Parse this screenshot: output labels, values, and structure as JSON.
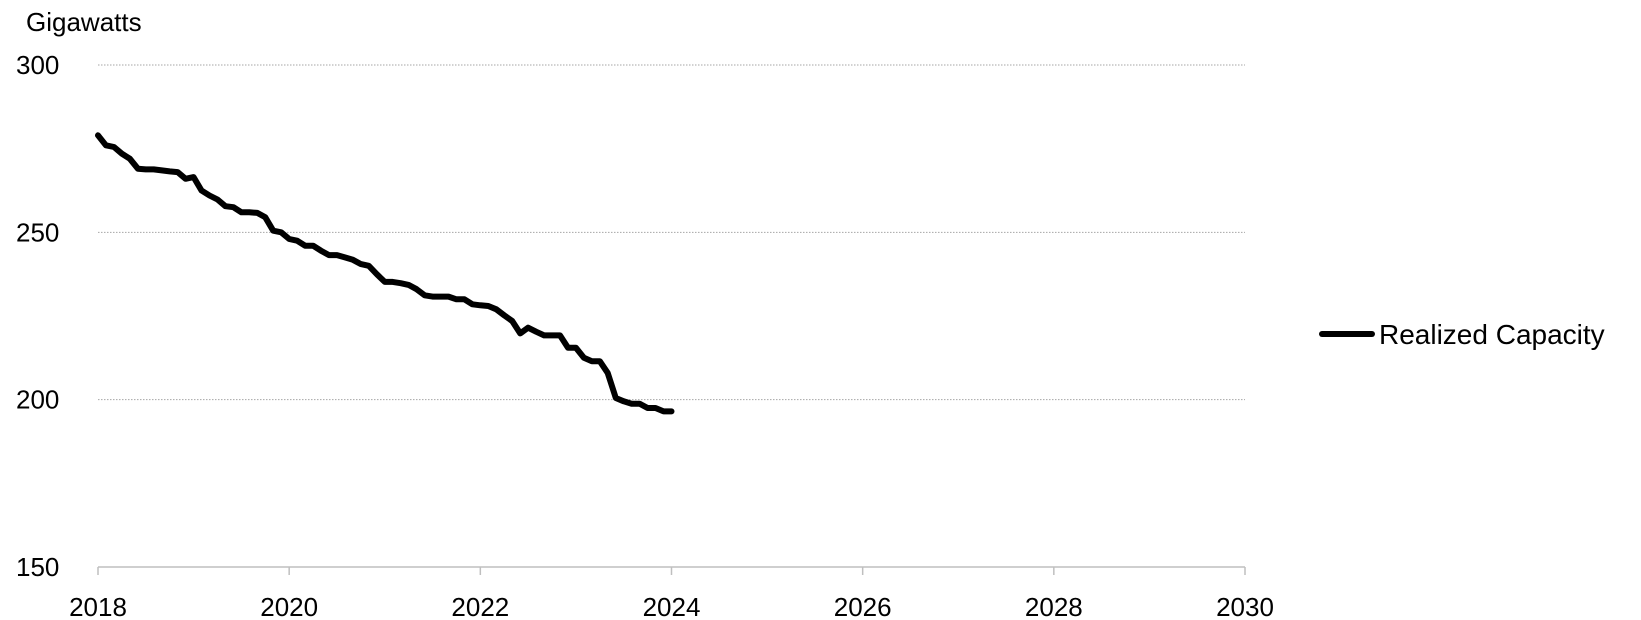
{
  "chart_data": {
    "type": "line",
    "title": "",
    "ylabel": "Gigawatts",
    "xlabel": "",
    "xlim": [
      2018,
      2030
    ],
    "ylim": [
      150,
      300
    ],
    "xticks": [
      2018,
      2020,
      2022,
      2024,
      2026,
      2028,
      2030
    ],
    "yticks": [
      150,
      200,
      250,
      300
    ],
    "grid": "horizontal dotted",
    "legend": "right",
    "series": [
      {
        "name": "Realized Capacity",
        "color": "#000000",
        "x": [
          2018.0,
          2018.083,
          2018.167,
          2018.25,
          2018.333,
          2018.417,
          2018.5,
          2018.583,
          2018.667,
          2018.75,
          2018.833,
          2018.917,
          2019.0,
          2019.083,
          2019.167,
          2019.25,
          2019.333,
          2019.417,
          2019.5,
          2019.583,
          2019.667,
          2019.75,
          2019.833,
          2019.917,
          2020.0,
          2020.083,
          2020.167,
          2020.25,
          2020.333,
          2020.417,
          2020.5,
          2020.583,
          2020.667,
          2020.75,
          2020.833,
          2020.917,
          2021.0,
          2021.083,
          2021.167,
          2021.25,
          2021.333,
          2021.417,
          2021.5,
          2021.583,
          2021.667,
          2021.75,
          2021.833,
          2021.917,
          2022.0,
          2022.083,
          2022.167,
          2022.25,
          2022.333,
          2022.417,
          2022.5,
          2022.583,
          2022.667,
          2022.75,
          2022.833,
          2022.917,
          2023.0,
          2023.083,
          2023.167,
          2023.25,
          2023.333,
          2023.417,
          2023.5,
          2023.583,
          2023.667,
          2023.75,
          2023.833,
          2023.917,
          2024.0
        ],
        "values": [
          279,
          276,
          275.5,
          273.5,
          272,
          269,
          268.8,
          268.8,
          268.5,
          268.2,
          268,
          266,
          266.5,
          262.5,
          261,
          259.8,
          257.8,
          257.5,
          256,
          256,
          255.8,
          254.5,
          250.5,
          250,
          248,
          247.5,
          246,
          246,
          244.5,
          243.2,
          243.2,
          242.5,
          241.8,
          240.5,
          240,
          237.5,
          235.2,
          235.2,
          234.8,
          234.3,
          233,
          231.2,
          230.8,
          230.8,
          230.8,
          230,
          230,
          228.5,
          228.2,
          228,
          227,
          225.2,
          223.5,
          219.8,
          221.5,
          220.3,
          219.2,
          219.2,
          219.2,
          215.5,
          215.5,
          212.5,
          211.5,
          211.5,
          208,
          200.5,
          199.5,
          198.8,
          198.8,
          197.5,
          197.5,
          196.5,
          196.5
        ]
      }
    ]
  }
}
